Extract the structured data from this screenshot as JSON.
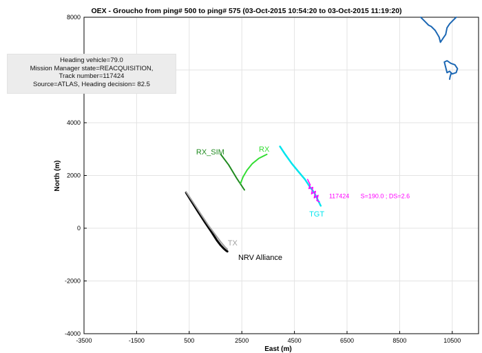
{
  "chart_data": {
    "type": "line",
    "title": "OEX - Groucho from ping# 500 to ping# 575 (03-Oct-2015 10:54:20 to 03-Oct-2015 11:19:20)",
    "xlabel": "East (m)",
    "ylabel": "North (m)",
    "xlim": [
      -3500,
      11500
    ],
    "ylim": [
      -4000,
      8000
    ],
    "xticks": [
      -3500,
      -1500,
      500,
      2500,
      4500,
      6500,
      8500,
      10500
    ],
    "yticks": [
      -4000,
      -2000,
      0,
      2000,
      4000,
      6000,
      8000
    ],
    "xtick_labels": [
      "-3500",
      "-1500",
      "500",
      "2500",
      "4500",
      "6500",
      "8500",
      "10500"
    ],
    "ytick_labels": [
      "-4000",
      "-2000",
      "0",
      "2000",
      "4000",
      "",
      "8000"
    ],
    "grid": true,
    "series": [
      {
        "name": "NRV Alliance",
        "color": "#000000",
        "x": [
          380,
          600,
          850,
          1100,
          1350,
          1550,
          1700,
          1820,
          1900,
          1950
        ],
        "y": [
          1350,
          1000,
          600,
          220,
          -150,
          -460,
          -650,
          -780,
          -850,
          -880
        ]
      },
      {
        "name": "TX",
        "color": "#a0a0a0",
        "x": [
          380,
          650,
          950,
          1250,
          1500,
          1700,
          1850,
          1950
        ],
        "y": [
          1380,
          980,
          520,
          80,
          -260,
          -520,
          -700,
          -800
        ]
      },
      {
        "name": "RX_SIM",
        "color": "#1f8a1f",
        "x": [
          1700,
          2000,
          2300,
          2600
        ],
        "y": [
          2800,
          2400,
          1900,
          1450
        ]
      },
      {
        "name": "RX",
        "color": "#33dd33",
        "x": [
          2450,
          2550,
          2700,
          2900,
          3150,
          3450
        ],
        "y": [
          1700,
          1950,
          2200,
          2450,
          2650,
          2800
        ]
      },
      {
        "name": "TGT",
        "color": "#00e5ee",
        "x": [
          3950,
          4150,
          4400,
          4650,
          4900,
          5100,
          5250,
          5350,
          5450,
          5500
        ],
        "y": [
          3100,
          2800,
          2450,
          2150,
          1850,
          1550,
          1350,
          1150,
          950,
          850
        ]
      },
      {
        "name": "117424",
        "color": "#ff00ff",
        "x": [
          5000,
          5100,
          5050,
          5200,
          5150,
          5300,
          5250,
          5400,
          5350,
          5450
        ],
        "y": [
          1850,
          1650,
          1500,
          1550,
          1300,
          1400,
          1150,
          1250,
          1050,
          1000
        ]
      },
      {
        "name": "coastline-1",
        "color": "#1a66b3",
        "x": [
          9300,
          9450,
          9600,
          9700,
          9850,
          10000,
          10050,
          10150,
          10250,
          10300,
          10400,
          10500,
          10650
        ],
        "y": [
          8000,
          7850,
          7700,
          7650,
          7500,
          7250,
          7050,
          7200,
          7350,
          7600,
          7750,
          7850,
          8000
        ]
      },
      {
        "name": "coastline-2",
        "color": "#1a66b3",
        "x": [
          10200,
          10300,
          10450,
          10600,
          10700,
          10650,
          10500,
          10400,
          10300,
          10250,
          10200
        ],
        "y": [
          6300,
          6350,
          6250,
          6200,
          6050,
          5900,
          5850,
          5950,
          5900,
          6100,
          6300
        ]
      },
      {
        "name": "coastline-3",
        "color": "#1a66b3",
        "x": [
          10450,
          10420,
          10400
        ],
        "y": [
          5850,
          5750,
          5650
        ]
      }
    ],
    "annotations": [
      {
        "text": "RX_SIM",
        "x": 1300,
        "y": 2800,
        "color": "#1f8a1f"
      },
      {
        "text": "RX",
        "x": 3350,
        "y": 2900,
        "color": "#33dd33"
      },
      {
        "text": "TGT",
        "x": 5350,
        "y": 450,
        "color": "#00e5ee"
      },
      {
        "text": "117424",
        "x": 6200,
        "y": 1140,
        "color": "#ff00ff"
      },
      {
        "text": "S=190.0 ; DS=2.6",
        "x": 7950,
        "y": 1140,
        "color": "#ff00ff"
      },
      {
        "text": "TX",
        "x": 2150,
        "y": -650,
        "color": "#a0a0a0"
      },
      {
        "text": "NRV Alliance",
        "x": 3200,
        "y": -1200,
        "color": "#000000"
      }
    ]
  },
  "info_box": {
    "lines": [
      "Heading vehicle=79.0",
      "Mission Manager state=REACQUISITION,",
      "Track number=117424",
      "Source=ATLAS, Heading decision= 82.5"
    ]
  }
}
